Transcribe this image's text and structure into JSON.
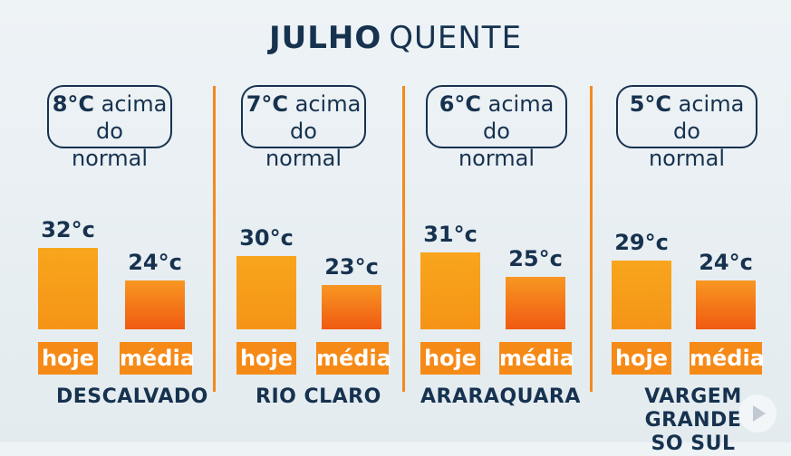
{
  "title": {
    "bold": "JULHO",
    "light": "QUENTE"
  },
  "panels": [
    {
      "diff": "8°C",
      "note_rest": "acima do",
      "note_line2": "normal",
      "hoje": "32°c",
      "media": "24°c",
      "hoje_label": "hoje",
      "media_label": "média",
      "city_line1": "DESCALVADO",
      "city_line2": ""
    },
    {
      "diff": "7°C",
      "note_rest": "acima do",
      "note_line2": "normal",
      "hoje": "30°c",
      "media": "23°c",
      "hoje_label": "hoje",
      "media_label": "média",
      "city_line1": "RIO CLARO",
      "city_line2": ""
    },
    {
      "diff": "6°C",
      "note_rest": "acima do",
      "note_line2": "normal",
      "hoje": "31°c",
      "media": "25°c",
      "hoje_label": "hoje",
      "media_label": "média",
      "city_line1": "ARARAQUARA",
      "city_line2": ""
    },
    {
      "diff": "5°C",
      "note_rest": "acima do",
      "note_line2": "normal",
      "hoje": "29°c",
      "media": "24°c",
      "hoje_label": "hoje",
      "media_label": "média",
      "city_line1": "VARGEM GRANDE",
      "city_line2": "SO SUL"
    }
  ],
  "chart_data": {
    "type": "bar",
    "categories": [
      "DESCALVADO",
      "RIO CLARO",
      "ARARAQUARA",
      "VARGEM GRANDE SO SUL"
    ],
    "series": [
      {
        "name": "hoje",
        "values": [
          32,
          30,
          31,
          29
        ]
      },
      {
        "name": "média",
        "values": [
          24,
          23,
          25,
          24
        ]
      }
    ],
    "title": "JULHO QUENTE",
    "colors": {
      "hoje": "#f7a01a",
      "media": "#f26a14",
      "text": "#16324f",
      "divider": "#f28a1e"
    }
  }
}
